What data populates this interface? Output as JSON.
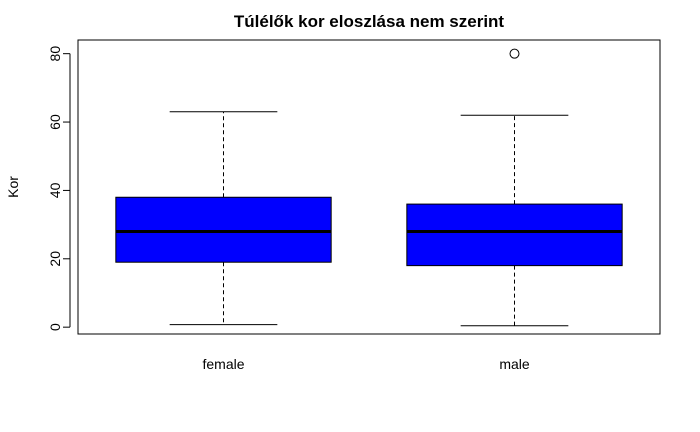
{
  "chart_data": {
    "type": "boxplot",
    "title": "Túlélők kor eloszlása nem szerint",
    "xlabel": "",
    "ylabel": "Kor",
    "ylim": [
      -2,
      84
    ],
    "yticks": [
      0,
      20,
      40,
      60,
      80
    ],
    "categories": [
      "female",
      "male"
    ],
    "box_color": "#0000ff",
    "grid": false,
    "boxes": [
      {
        "category": "female",
        "whisker_low": 0.75,
        "q1": 19,
        "median": 28,
        "q3": 38,
        "whisker_high": 63,
        "outliers": []
      },
      {
        "category": "male",
        "whisker_low": 0.42,
        "q1": 18,
        "median": 28,
        "q3": 36,
        "whisker_high": 62,
        "outliers": [
          80
        ]
      }
    ]
  }
}
